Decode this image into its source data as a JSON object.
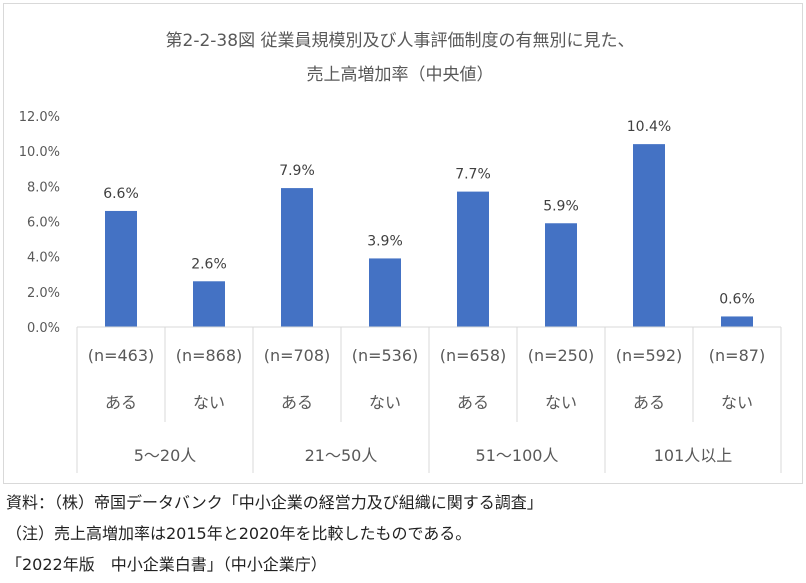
{
  "chart_data": {
    "type": "bar",
    "title_lines": [
      "第2-2-38図 従業員規模別及び人事評価制度の有無別に見た、",
      "売上高増加率（中央値）"
    ],
    "categories": [
      {
        "n": "(n=463)",
        "label": "ある"
      },
      {
        "n": "(n=868)",
        "label": "ない"
      },
      {
        "n": "(n=708)",
        "label": "ある"
      },
      {
        "n": "(n=536)",
        "label": "ない"
      },
      {
        "n": "(n=658)",
        "label": "ある"
      },
      {
        "n": "(n=250)",
        "label": "ない"
      },
      {
        "n": "(n=592)",
        "label": "ある"
      },
      {
        "n": "(n=87)",
        "label": "ない"
      }
    ],
    "groups": [
      "5～20人",
      "21～50人",
      "51～100人",
      "101人以上"
    ],
    "values": [
      6.6,
      2.6,
      7.9,
      3.9,
      7.7,
      5.9,
      10.4,
      0.6
    ],
    "data_labels": [
      "6.6%",
      "2.6%",
      "7.9%",
      "3.9%",
      "7.7%",
      "5.9%",
      "10.4%",
      "0.6%"
    ],
    "y_ticks": [
      "0.0%",
      "2.0%",
      "4.0%",
      "6.0%",
      "8.0%",
      "10.0%",
      "12.0%"
    ],
    "ylim": [
      0,
      12
    ],
    "bar_color": "#4472C4",
    "grid": false,
    "legend": "none"
  },
  "notes": [
    "資料：（株）帝国データバンク「中小企業の経営力及び組織に関する調査」",
    "（注）売上高増加率は2015年と2020年を比較したものである。",
    "「2022年版　中小企業白書」（中小企業庁）"
  ]
}
